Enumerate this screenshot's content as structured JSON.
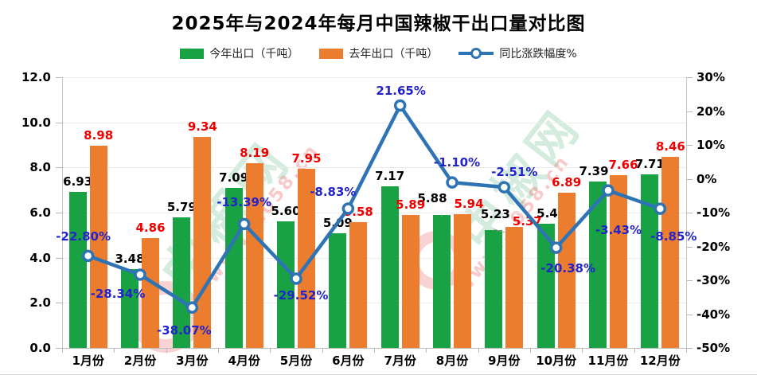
{
  "title": "2025年与2024年每月中国辣椒干出口量对比图",
  "legend": {
    "this_year": {
      "label": "今年出口（千吨）",
      "color": "#18A244"
    },
    "last_year": {
      "label": "去年出口（千吨）",
      "color": "#EC7D2E"
    },
    "yoy": {
      "label": "同比涨跌幅度%",
      "color": "#2E74B5"
    }
  },
  "watermark": {
    "site_name": "中椒网",
    "url_fragment": "www.…058.cn",
    "green_color": "rgba(140,205,165,0.38)",
    "pink_color": "rgba(240,120,120,0.40)"
  },
  "chart_data": {
    "type": "bar+line",
    "title": "2025年与2024年每月中国辣椒干出口量对比图",
    "categories": [
      "1月份",
      "2月份",
      "3月份",
      "4月份",
      "5月份",
      "6月份",
      "7月份",
      "8月份",
      "9月份",
      "10月份",
      "11月份",
      "12月份"
    ],
    "grid": true,
    "legend_position": "top",
    "axes": {
      "left": {
        "min": 0,
        "max": 12,
        "tick_values": [
          12,
          10,
          8,
          6,
          4,
          2,
          0
        ],
        "tick_labels": [
          "12.0",
          "10.0",
          "8.0",
          "6.0",
          "4.0",
          "2.0",
          "0.0"
        ]
      },
      "right": {
        "min": -50,
        "max": 30,
        "tick_values": [
          30,
          20,
          10,
          0,
          -10,
          -20,
          -30,
          -40,
          -50
        ],
        "tick_labels": [
          "30%",
          "20%",
          "10%",
          "0%",
          "-10%",
          "-20%",
          "-30%",
          "-40%",
          "-50%"
        ]
      }
    },
    "series": [
      {
        "name": "今年出口（千吨）",
        "type": "bar",
        "axis": "left",
        "color": "#18A244",
        "label_color": "#000000",
        "values": [
          6.93,
          3.48,
          5.79,
          7.09,
          5.6,
          5.09,
          7.17,
          5.88,
          5.23,
          5.49,
          7.39,
          7.71
        ],
        "value_labels": [
          "6.93",
          "3.48",
          "5.79",
          "7.09",
          "5.60",
          "5.09",
          "7.17",
          "5.88",
          "5.23",
          "5.49",
          "7.39",
          "7.71"
        ],
        "label_offsets": [
          [
            0,
            0,
            0
          ],
          [
            0,
            0,
            0
          ],
          [
            0,
            0,
            0
          ],
          [
            0,
            0,
            0
          ],
          [
            0,
            0,
            0
          ],
          [
            0,
            0,
            0
          ],
          [
            0,
            0,
            0
          ],
          [
            -12,
            -8,
            1
          ],
          [
            2,
            -7,
            1
          ],
          [
            7,
            0,
            0
          ],
          [
            -5,
            0,
            0
          ],
          [
            0,
            0,
            0
          ]
        ]
      },
      {
        "name": "去年出口（千吨）",
        "type": "bar",
        "axis": "left",
        "color": "#EC7D2E",
        "label_color": "#EE0000",
        "values": [
          8.98,
          4.86,
          9.34,
          8.19,
          7.95,
          5.58,
          5.89,
          5.94,
          5.37,
          6.89,
          7.66,
          8.46
        ],
        "value_labels": [
          "8.98",
          "4.86",
          "9.34",
          "8.19",
          "7.95",
          "5.58",
          "5.89",
          "5.94",
          "5.37",
          "6.89",
          "7.66",
          "8.46"
        ],
        "label_offsets": [
          [
            0,
            0,
            0
          ],
          [
            0,
            0,
            0
          ],
          [
            0,
            0,
            0
          ],
          [
            0,
            0,
            0
          ],
          [
            0,
            0,
            0
          ],
          [
            0,
            0,
            0
          ],
          [
            0,
            0,
            0
          ],
          [
            8,
            0,
            0
          ],
          [
            16,
            6,
            0
          ],
          [
            0,
            0,
            0
          ],
          [
            6,
            0,
            0
          ],
          [
            0,
            0,
            0
          ]
        ]
      },
      {
        "name": "同比涨跌幅度%",
        "type": "line",
        "axis": "right",
        "color": "#2E74B5",
        "label_color": "#2323CB",
        "values": [
          -22.8,
          -28.34,
          -38.07,
          -13.39,
          -29.52,
          -8.83,
          21.65,
          -1.1,
          -2.51,
          -20.38,
          -3.43,
          -8.85
        ],
        "value_labels": [
          "-22.80%",
          "-28.34%",
          "-38.07%",
          "-13.39%",
          "-29.52%",
          "-8.83%",
          "21.65%",
          "-1.10%",
          "-2.51%",
          "-20.38%",
          "-3.43%",
          "-8.85%"
        ],
        "label_offsets": [
          [
            -6,
            -33
          ],
          [
            -28,
            15
          ],
          [
            -10,
            20
          ],
          [
            0,
            -36
          ],
          [
            6,
            12
          ],
          [
            -19,
            -30
          ],
          [
            1,
            -27
          ],
          [
            6,
            -34
          ],
          [
            13,
            -28
          ],
          [
            15,
            17
          ],
          [
            13,
            41
          ],
          [
            17,
            26
          ]
        ]
      }
    ]
  }
}
